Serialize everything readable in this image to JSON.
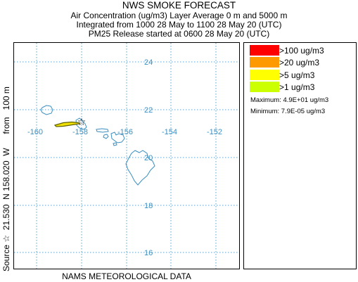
{
  "header": {
    "title": "NWS SMOKE FORECAST",
    "line1": "Air Concentration (ug/m3) Layer Average    0 m and  5000 m",
    "line2": "Integrated from 1000 28 May to 1100 28 May 20 (UTC)",
    "line3": "PM25 Release started at 0600 28 May 20 (UTC)"
  },
  "map": {
    "lon_labels": [
      "-160",
      "-158",
      "-156",
      "-154",
      "-152"
    ],
    "lat_labels": [
      "24",
      "22",
      "20",
      "18",
      "16"
    ],
    "source_marker": "☆",
    "colors": {
      "grid": "#5aa0d0",
      "coast": "#3a8fc0",
      "label": "#3a8fc0",
      "plume_fill": "#f0e000",
      "plume_edge": "#606000"
    }
  },
  "legend": {
    "items": [
      {
        "label": ">100 ug/m3",
        "color": "#ff0000"
      },
      {
        "label": ">20 ug/m3",
        "color": "#ff9900"
      },
      {
        "label": ">5 ug/m3",
        "color": "#ffff00"
      },
      {
        "label": ">1 ug/m3",
        "color": "#ccff00"
      }
    ],
    "maximum": "Maximum: 4.9E+01 ug/m3",
    "minimum": "Minimum: 7.9E-05 ug/m3"
  },
  "side_label": "Source ☆  21.530  N 158.020  W      from   100 m",
  "footer": "NAMS METEOROLOGICAL DATA"
}
